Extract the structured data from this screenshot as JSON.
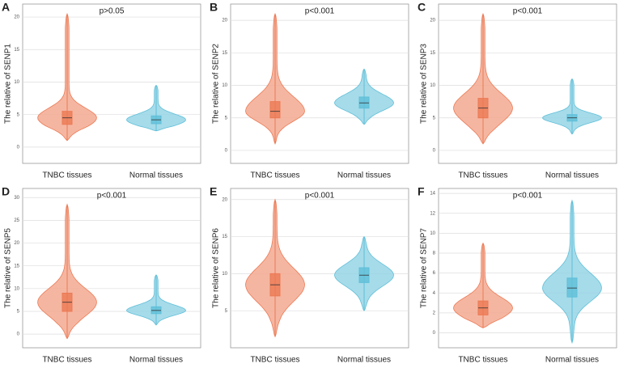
{
  "chart_data": [
    {
      "type": "violin",
      "panel": "A",
      "title": "p>0.05",
      "ylabel": "The relative of SENP1",
      "categories": [
        "TNBC tissues",
        "Normal tissues"
      ],
      "ylim": [
        -2.5,
        22
      ],
      "yticks": [
        0,
        5,
        10,
        15,
        20
      ],
      "grid": true,
      "boxes": [
        {
          "color": "#ec7a55",
          "min": 1,
          "q1": 3.5,
          "median": 4.5,
          "q3": 5.5,
          "max": 20.5
        },
        {
          "color": "#5fbfd8",
          "min": 2.5,
          "q1": 3.6,
          "median": 4.2,
          "q3": 4.8,
          "max": 9.5
        }
      ]
    },
    {
      "type": "violin",
      "panel": "B",
      "title": "p<0.001",
      "ylabel": "The relative of SENP2",
      "categories": [
        "TNBC tissues",
        "Normal tissues"
      ],
      "ylim": [
        -2,
        22.5
      ],
      "yticks": [
        0,
        5,
        10,
        15,
        20
      ],
      "grid": true,
      "boxes": [
        {
          "color": "#ec7a55",
          "min": 1,
          "q1": 5,
          "median": 6,
          "q3": 7.5,
          "max": 21
        },
        {
          "color": "#5fbfd8",
          "min": 4,
          "q1": 6.5,
          "median": 7.3,
          "q3": 8.2,
          "max": 12.5
        }
      ]
    },
    {
      "type": "violin",
      "panel": "C",
      "title": "p<0.001",
      "ylabel": "The relative of SENP3",
      "categories": [
        "TNBC tissues",
        "Normal tissues"
      ],
      "ylim": [
        -2,
        22.5
      ],
      "yticks": [
        0,
        5,
        10,
        15,
        20
      ],
      "grid": true,
      "boxes": [
        {
          "color": "#ec7a55",
          "min": 1,
          "q1": 5,
          "median": 6.5,
          "q3": 8,
          "max": 21
        },
        {
          "color": "#5fbfd8",
          "min": 2.5,
          "q1": 4.5,
          "median": 5,
          "q3": 5.5,
          "max": 11
        }
      ]
    },
    {
      "type": "violin",
      "panel": "D",
      "title": "p<0.001",
      "ylabel": "The relative of SENP5",
      "categories": [
        "TNBC tissues",
        "Normal tissues"
      ],
      "ylim": [
        -3,
        32
      ],
      "yticks": [
        0,
        5,
        10,
        15,
        20,
        25,
        30
      ],
      "grid": true,
      "boxes": [
        {
          "color": "#ec7a55",
          "min": -1,
          "q1": 5,
          "median": 7,
          "q3": 9,
          "max": 28.5
        },
        {
          "color": "#5fbfd8",
          "min": 2,
          "q1": 4.5,
          "median": 5.2,
          "q3": 6,
          "max": 13
        }
      ]
    },
    {
      "type": "violin",
      "panel": "E",
      "title": "p<0.001",
      "ylabel": "The relative of SENP6",
      "categories": [
        "TNBC tissues",
        "Normal tissues"
      ],
      "ylim": [
        0,
        21.5
      ],
      "yticks": [
        5,
        10,
        15,
        20
      ],
      "grid": true,
      "boxes": [
        {
          "color": "#ec7a55",
          "min": 1.5,
          "q1": 7,
          "median": 8.5,
          "q3": 10,
          "max": 20
        },
        {
          "color": "#5fbfd8",
          "min": 5,
          "q1": 8.8,
          "median": 9.8,
          "q3": 10.8,
          "max": 15
        }
      ]
    },
    {
      "type": "violin",
      "panel": "F",
      "title": "p<0.001",
      "ylabel": "The relative of SENP7",
      "categories": [
        "TNBC tissues",
        "Normal tissues"
      ],
      "ylim": [
        -1.5,
        14.5
      ],
      "yticks": [
        0,
        2,
        4,
        6,
        8,
        10,
        12,
        14
      ],
      "grid": true,
      "boxes": [
        {
          "color": "#ec7a55",
          "min": 0.5,
          "q1": 1.8,
          "median": 2.5,
          "q3": 3.2,
          "max": 9
        },
        {
          "color": "#5fbfd8",
          "min": -1,
          "q1": 3.6,
          "median": 4.5,
          "q3": 5.5,
          "max": 13.3
        }
      ]
    }
  ]
}
